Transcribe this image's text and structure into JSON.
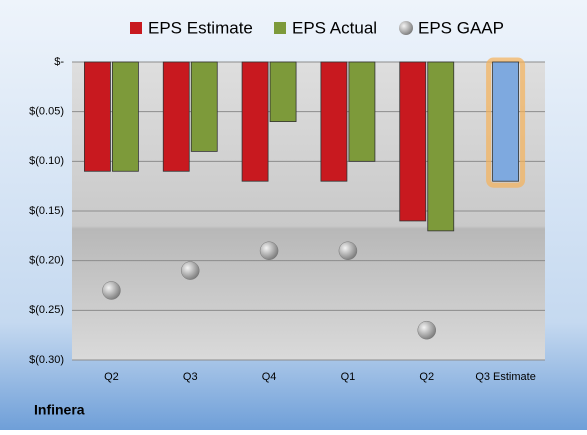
{
  "chart_data": {
    "type": "bar",
    "footer": "Infinera",
    "categories": [
      "Q2",
      "Q3",
      "Q4",
      "Q1",
      "Q2",
      "Q3 Estimate"
    ],
    "series": [
      {
        "name": "EPS Estimate",
        "color": "#c8191f",
        "colors": [
          "#c8191f",
          "#c8191f",
          "#c8191f",
          "#c8191f",
          "#c8191f",
          "#7ea9df"
        ],
        "values": [
          -0.11,
          -0.11,
          -0.12,
          -0.12,
          -0.16,
          -0.12
        ]
      },
      {
        "name": "EPS Actual",
        "color": "#7d9a3a",
        "values": [
          -0.11,
          -0.09,
          -0.06,
          -0.1,
          -0.17,
          null
        ]
      },
      {
        "name": "EPS GAAP",
        "color": "#a8a8a8",
        "marker": "circle",
        "values": [
          -0.23,
          -0.21,
          -0.19,
          -0.19,
          -0.27,
          null
        ]
      }
    ],
    "ylim": [
      -0.3,
      0
    ],
    "yticks": [
      {
        "value": 0,
        "label": "$-"
      },
      {
        "value": -0.05,
        "label": "$(0.05)"
      },
      {
        "value": -0.1,
        "label": "$(0.10)"
      },
      {
        "value": -0.15,
        "label": "$(0.15)"
      },
      {
        "value": -0.2,
        "label": "$(0.20)"
      },
      {
        "value": -0.25,
        "label": "$(0.25)"
      },
      {
        "value": -0.3,
        "label": "$(0.30)"
      }
    ],
    "grid": true
  }
}
